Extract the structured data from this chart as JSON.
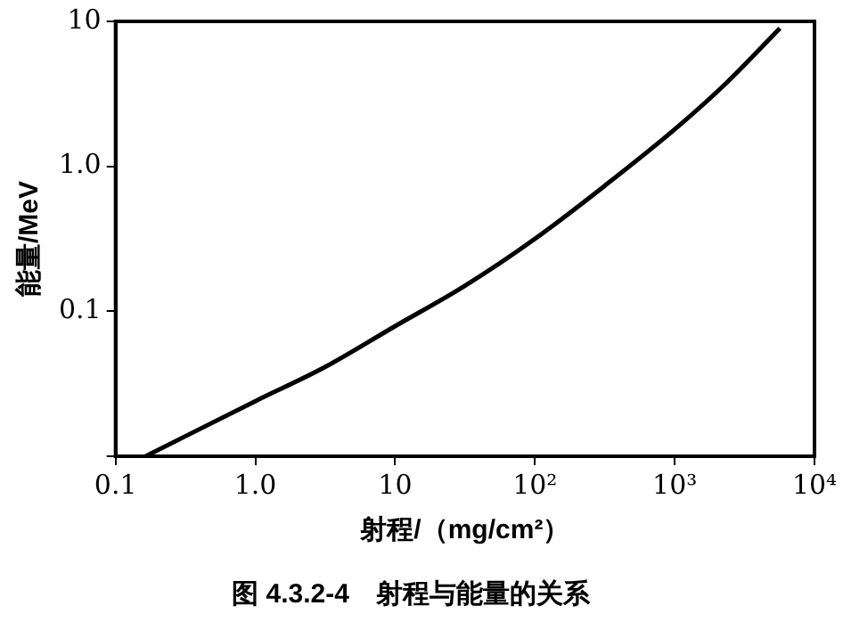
{
  "chart_data": {
    "type": "line",
    "title": "图 4.3.2-4　射程与能量的关系",
    "xlabel": "射程/（mg/cm²）",
    "ylabel": "能量/MeV",
    "x": [
      0.164,
      1,
      3.16,
      10,
      31.6,
      100,
      316,
      1000,
      2356,
      5660
    ],
    "series": [
      {
        "color": "#000000",
        "values": [
          0.01,
          0.024,
          0.0413,
          0.079,
          0.15,
          0.316,
          0.735,
          1.8,
          3.78,
          8.97
        ]
      }
    ],
    "log": "xy",
    "xlim": [
      0.1,
      10000
    ],
    "ylim": [
      0.01,
      10
    ],
    "xticks": [
      0.1,
      {
        "value": 1,
        "label": "1.0"
      },
      10,
      {
        "value": 100,
        "label": "10²"
      },
      {
        "value": 1000,
        "label": "10³"
      },
      {
        "value": 10000,
        "label": "10⁴"
      }
    ],
    "yticks": [
      {
        "value": 0.01,
        "label": null
      },
      0.1,
      {
        "value": 1,
        "label": "1.0"
      },
      10
    ],
    "grid": false,
    "legend": false,
    "marker": "none",
    "line_style": "solid"
  }
}
